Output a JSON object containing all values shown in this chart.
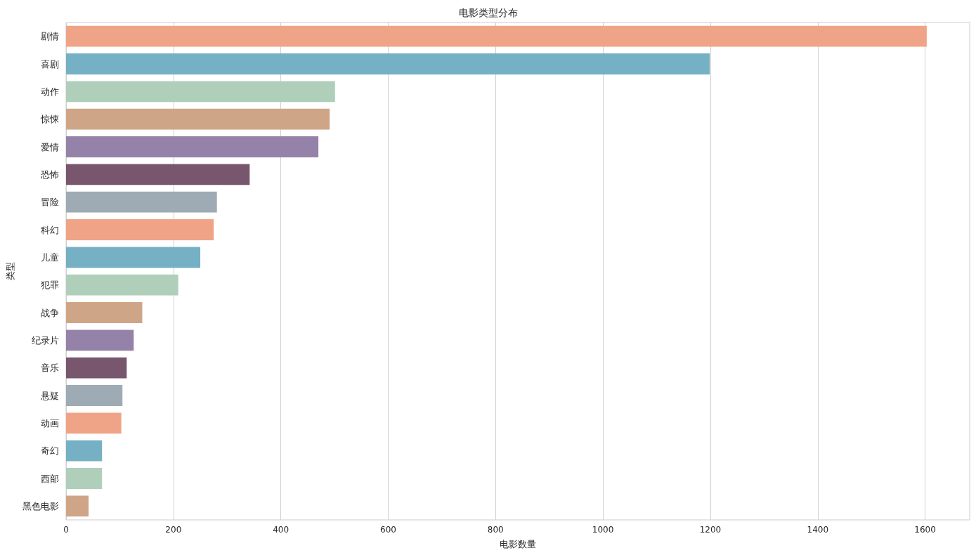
{
  "chart_data": {
    "type": "bar",
    "orientation": "horizontal",
    "title": "电影类型分布",
    "xlabel": "电影数量",
    "ylabel": "类型",
    "categories": [
      "剧情",
      "喜剧",
      "动作",
      "惊悚",
      "爱情",
      "恐怖",
      "冒险",
      "科幻",
      "儿童",
      "犯罪",
      "战争",
      "纪录片",
      "音乐",
      "悬疑",
      "动画",
      "奇幻",
      "西部",
      "黑色电影"
    ],
    "values": [
      1603,
      1199,
      501,
      491,
      470,
      342,
      281,
      275,
      250,
      209,
      142,
      126,
      113,
      105,
      103,
      67,
      67,
      42
    ],
    "colors": [
      "#f0a487",
      "#75b0c5",
      "#afcfbb",
      "#cea687",
      "#9582a8",
      "#78566d",
      "#9fabb4",
      "#f0a487",
      "#75b0c5",
      "#afcfbb",
      "#cea687",
      "#9582a8",
      "#78566d",
      "#9fabb4",
      "#f0a487",
      "#75b0c5",
      "#afcfbb",
      "#cea687"
    ],
    "xlim": [
      0,
      1683
    ],
    "xticks": [
      0,
      200,
      400,
      600,
      800,
      1000,
      1200,
      1400,
      1600
    ],
    "grid": "x"
  }
}
